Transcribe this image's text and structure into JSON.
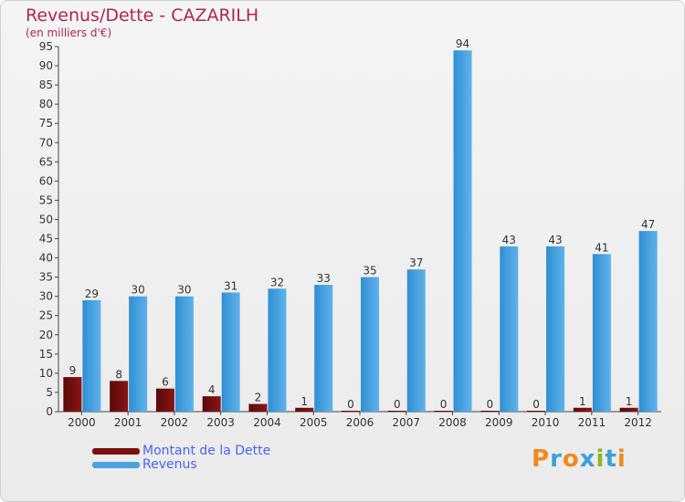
{
  "colors": {
    "title": "#b0245a",
    "dette": "#7a0f0f",
    "revenus": "#4aa3e0",
    "legend_text": "#4466ee"
  },
  "logo": {
    "letters": [
      "P",
      "r",
      "o",
      "x",
      "i",
      "t",
      "i"
    ],
    "colors": [
      "#f08a1c",
      "#3da0d8",
      "#f08a1c",
      "#3da0d8",
      "#8ab920",
      "#3da0d8",
      "#f08a1c"
    ]
  },
  "chart_data": {
    "type": "bar",
    "title": "Revenus/Dette - CAZARILH",
    "subtitle": "(en milliers d'€)",
    "categories": [
      "2000",
      "2001",
      "2002",
      "2003",
      "2004",
      "2005",
      "2006",
      "2007",
      "2008",
      "2009",
      "2010",
      "2011",
      "2012"
    ],
    "series": [
      {
        "name": "Montant de la Dette",
        "values": [
          9,
          8,
          6,
          4,
          2,
          1,
          0,
          0,
          0,
          0,
          0,
          1,
          1
        ]
      },
      {
        "name": "Revenus",
        "values": [
          29,
          30,
          30,
          31,
          32,
          33,
          35,
          37,
          94,
          43,
          43,
          41,
          47
        ]
      }
    ],
    "ylim": [
      0,
      95
    ],
    "yticks": [
      0,
      5,
      10,
      15,
      20,
      25,
      30,
      35,
      40,
      45,
      50,
      55,
      60,
      65,
      70,
      75,
      80,
      85,
      90,
      95
    ],
    "grid": false,
    "legend": "bottom-left"
  }
}
